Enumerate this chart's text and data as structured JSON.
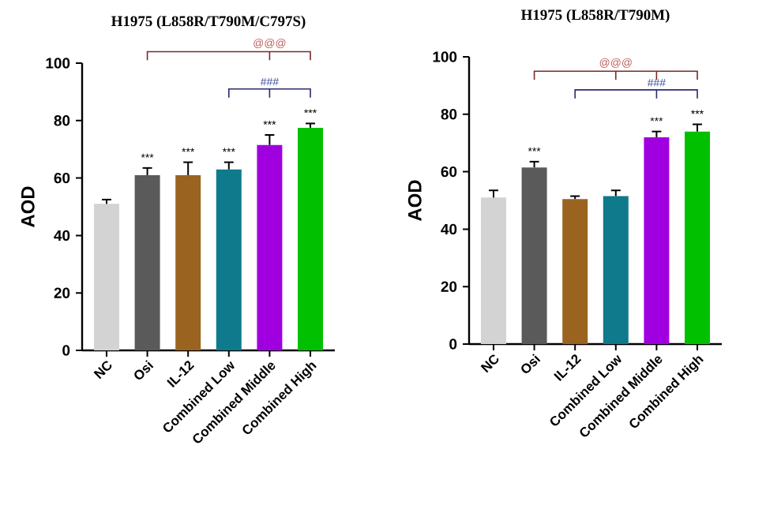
{
  "chart_data": [
    {
      "type": "bar",
      "title": "H1975 (L858R/T790M/C797S)",
      "ylabel": "AOD",
      "categories": [
        "NC",
        "Osi",
        "IL-12",
        "Combined Low",
        "Combined Middle",
        "Combined High"
      ],
      "values": [
        51,
        61,
        61,
        63,
        71.5,
        77.5
      ],
      "errors": [
        1.5,
        2.5,
        4.5,
        2.5,
        3.5,
        1.5
      ],
      "colors": [
        "#d3d3d3",
        "#5a5a5a",
        "#9a6420",
        "#0e7a8c",
        "#a000e0",
        "#00c000"
      ],
      "ylim": [
        0,
        100
      ],
      "yticks": [
        0,
        20,
        40,
        60,
        80,
        100
      ],
      "annotations": [
        "***",
        "***",
        "***",
        "***",
        "***",
        "@@@",
        "###"
      ]
    },
    {
      "type": "bar",
      "title": "H1975 (L858R/T790M)",
      "ylabel": "AOD",
      "categories": [
        "NC",
        "Osi",
        "IL-12",
        "Combined Low",
        "Combined Middle",
        "Combined High"
      ],
      "values": [
        51,
        61.5,
        50.5,
        51.5,
        72,
        74
      ],
      "errors": [
        2.5,
        2,
        1,
        2,
        2,
        2.5
      ],
      "colors": [
        "#d3d3d3",
        "#5a5a5a",
        "#9a6420",
        "#0e7a8c",
        "#a000e0",
        "#00c000"
      ],
      "ylim": [
        0,
        100
      ],
      "yticks": [
        0,
        20,
        40,
        60,
        80,
        100
      ],
      "annotations": [
        "***",
        "***",
        "***",
        "@@@",
        "###"
      ]
    }
  ]
}
